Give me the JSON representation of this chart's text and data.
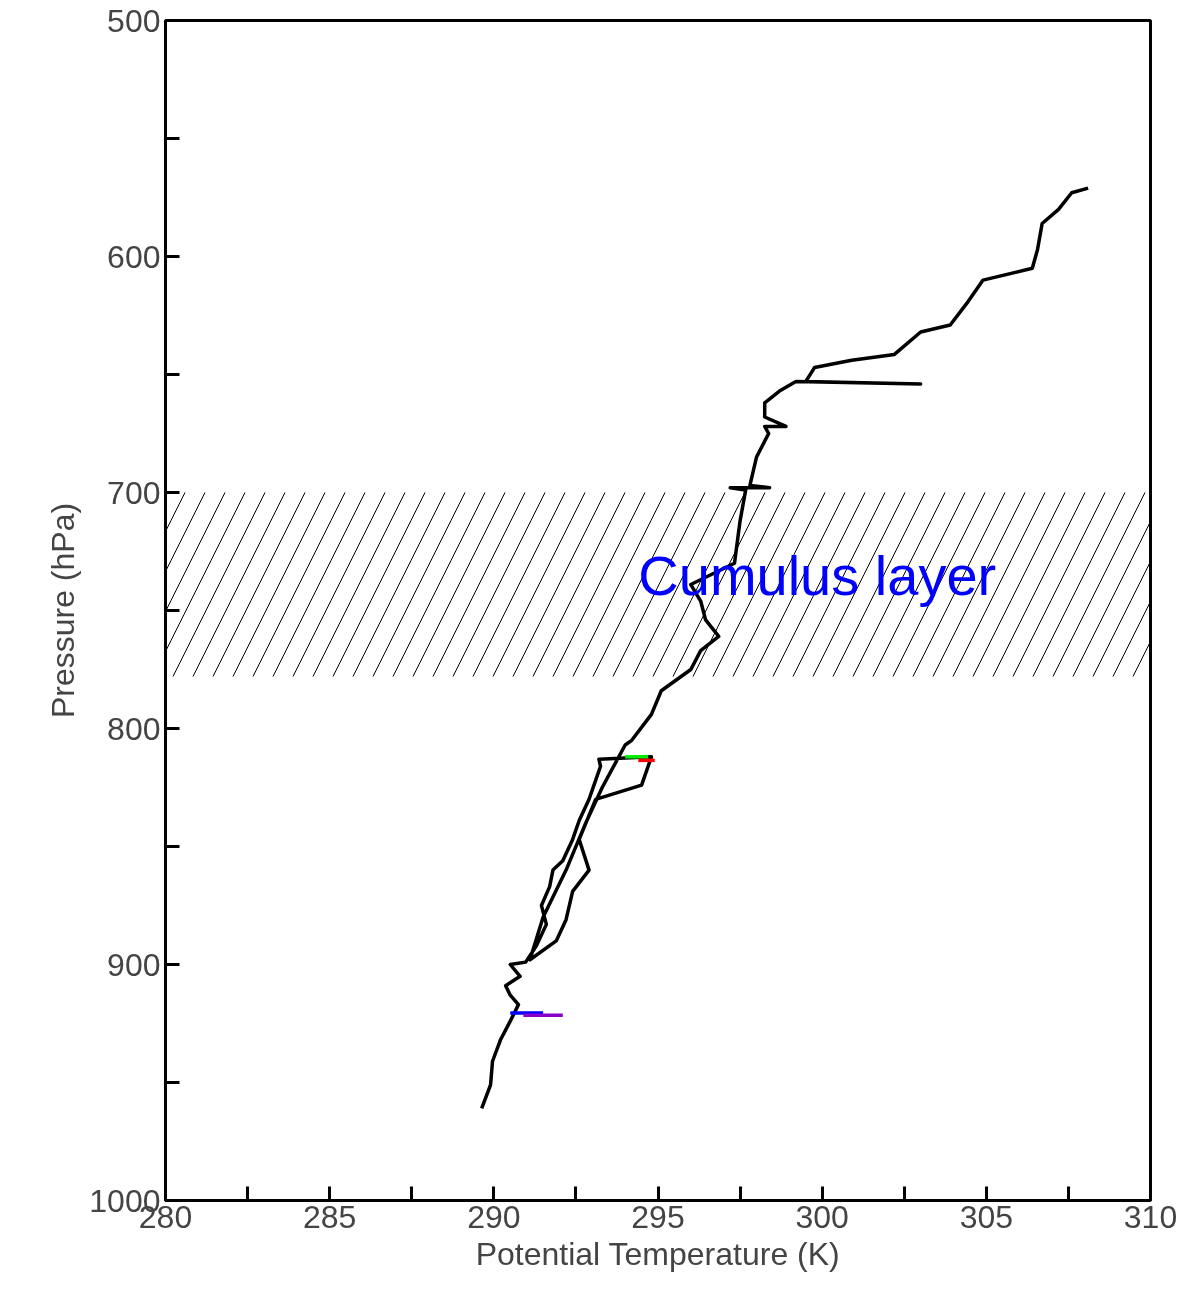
{
  "chart_data": {
    "type": "line",
    "xlabel": "Potential Temperature (K)",
    "ylabel": "Pressure (hPa)",
    "xlim": [
      280,
      310
    ],
    "ylim": [
      1000,
      500
    ],
    "xticks": [
      280,
      {
        "value": 282.5,
        "label": null
      },
      285,
      {
        "value": 287.5,
        "label": null
      },
      290,
      {
        "value": 292.5,
        "label": null
      },
      295,
      {
        "value": 297.5,
        "label": null
      },
      300,
      {
        "value": 302.5,
        "label": null
      },
      305,
      {
        "value": 307.5,
        "label": null
      },
      310
    ],
    "yticks": [
      500,
      {
        "value": 550,
        "label": null
      },
      600,
      {
        "value": 650,
        "label": null
      },
      700,
      {
        "value": 750,
        "label": null
      },
      800,
      {
        "value": 850,
        "label": null
      },
      900,
      {
        "value": 950,
        "label": null
      },
      1000
    ],
    "grid": false,
    "marker": "none",
    "line_style": "solid",
    "bands": [
      {
        "axis": "y",
        "from": 700,
        "to": 778,
        "color": "#000000",
        "label": "Cumulus layer"
      }
    ],
    "series": [
      {
        "color": "#000000",
        "x": [
          289.63,
          289.9,
          289.96,
          290.2,
          290.5,
          290.75,
          290.5,
          290.36,
          290.8,
          290.5,
          290.97,
          291.3,
          291.6,
          291.45,
          291.7,
          291.8,
          292.1,
          292.4,
          292.6,
          292.9,
          293.1,
          293.25,
          293.2,
          294.8,
          294.5,
          293.1,
          292.6,
          292.9,
          292.4,
          292.2,
          291.9,
          291.1,
          291.5,
          292.2,
          292.8,
          293.3,
          294.0,
          294.2,
          294.8,
          295.1,
          296.0,
          296.3,
          296.85,
          296.45,
          296.3,
          296.0,
          297.33,
          297.5,
          297.67,
          297.2,
          298.4,
          297.8,
          298.0,
          298.37,
          298.25,
          298.9,
          298.25,
          298.25,
          298.7,
          299.2,
          303.0,
          299.5,
          299.77,
          300.9,
          302.2,
          303.0,
          303.9,
          304.45,
          304.9,
          306.4,
          306.56,
          306.7,
          307.2,
          307.6,
          308.1
        ],
        "values": [
          961,
          951,
          941,
          932,
          924,
          917,
          913,
          909,
          905,
          900,
          899,
          892,
          883,
          875,
          867,
          860,
          856,
          847,
          839,
          830,
          822,
          816,
          813,
          812,
          824,
          830,
          847,
          860,
          869,
          881,
          890,
          898,
          880,
          860,
          840,
          825,
          807,
          805,
          794,
          784,
          775,
          767,
          761,
          754,
          746,
          739,
          730,
          712,
          699,
          698,
          698,
          697,
          685,
          675,
          672,
          672,
          668,
          662,
          657,
          653,
          654,
          653,
          647,
          644,
          641.5,
          632,
          629,
          619,
          610,
          605,
          597,
          586,
          580,
          573,
          571
        ]
      },
      {
        "color": "#00ee00",
        "x": [
          294.0,
          294.7
        ],
        "values": [
          812,
          812
        ]
      },
      {
        "color": "#ff0000",
        "x": [
          294.4,
          294.9
        ],
        "values": [
          813.5,
          813.5
        ]
      },
      {
        "color": "#0000ff",
        "x": [
          290.5,
          291.5
        ],
        "values": [
          920.5,
          920.5
        ]
      },
      {
        "color": "#8800cc",
        "x": [
          290.9,
          292.1
        ],
        "values": [
          921.5,
          921.5
        ]
      }
    ]
  }
}
